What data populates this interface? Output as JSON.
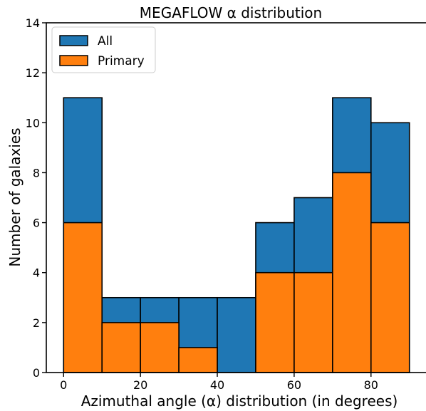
{
  "chart_data": {
    "type": "bar",
    "title": "MEGAFLOW α distribution",
    "xlabel": "Azimuthal angle (α) distribution (in degrees)",
    "ylabel": "Number of galaxies",
    "bins": [
      [
        0,
        10
      ],
      [
        10,
        20
      ],
      [
        20,
        30
      ],
      [
        30,
        40
      ],
      [
        40,
        50
      ],
      [
        50,
        60
      ],
      [
        60,
        70
      ],
      [
        70,
        80
      ],
      [
        80,
        90
      ]
    ],
    "series": [
      {
        "name": "All",
        "color": "#1f77b4",
        "values": [
          11,
          3,
          3,
          3,
          3,
          6,
          7,
          11,
          10
        ]
      },
      {
        "name": "Primary",
        "color": "#ff7f0e",
        "values": [
          6,
          2,
          2,
          1,
          0,
          4,
          4,
          8,
          6
        ]
      }
    ],
    "xlim": [
      -4.5,
      94.5
    ],
    "ylim": [
      0,
      14
    ],
    "xticks": [
      0,
      20,
      40,
      60,
      80
    ],
    "yticks": [
      0,
      2,
      4,
      6,
      8,
      10,
      12,
      14
    ],
    "legend": "top-left",
    "grid": false
  }
}
